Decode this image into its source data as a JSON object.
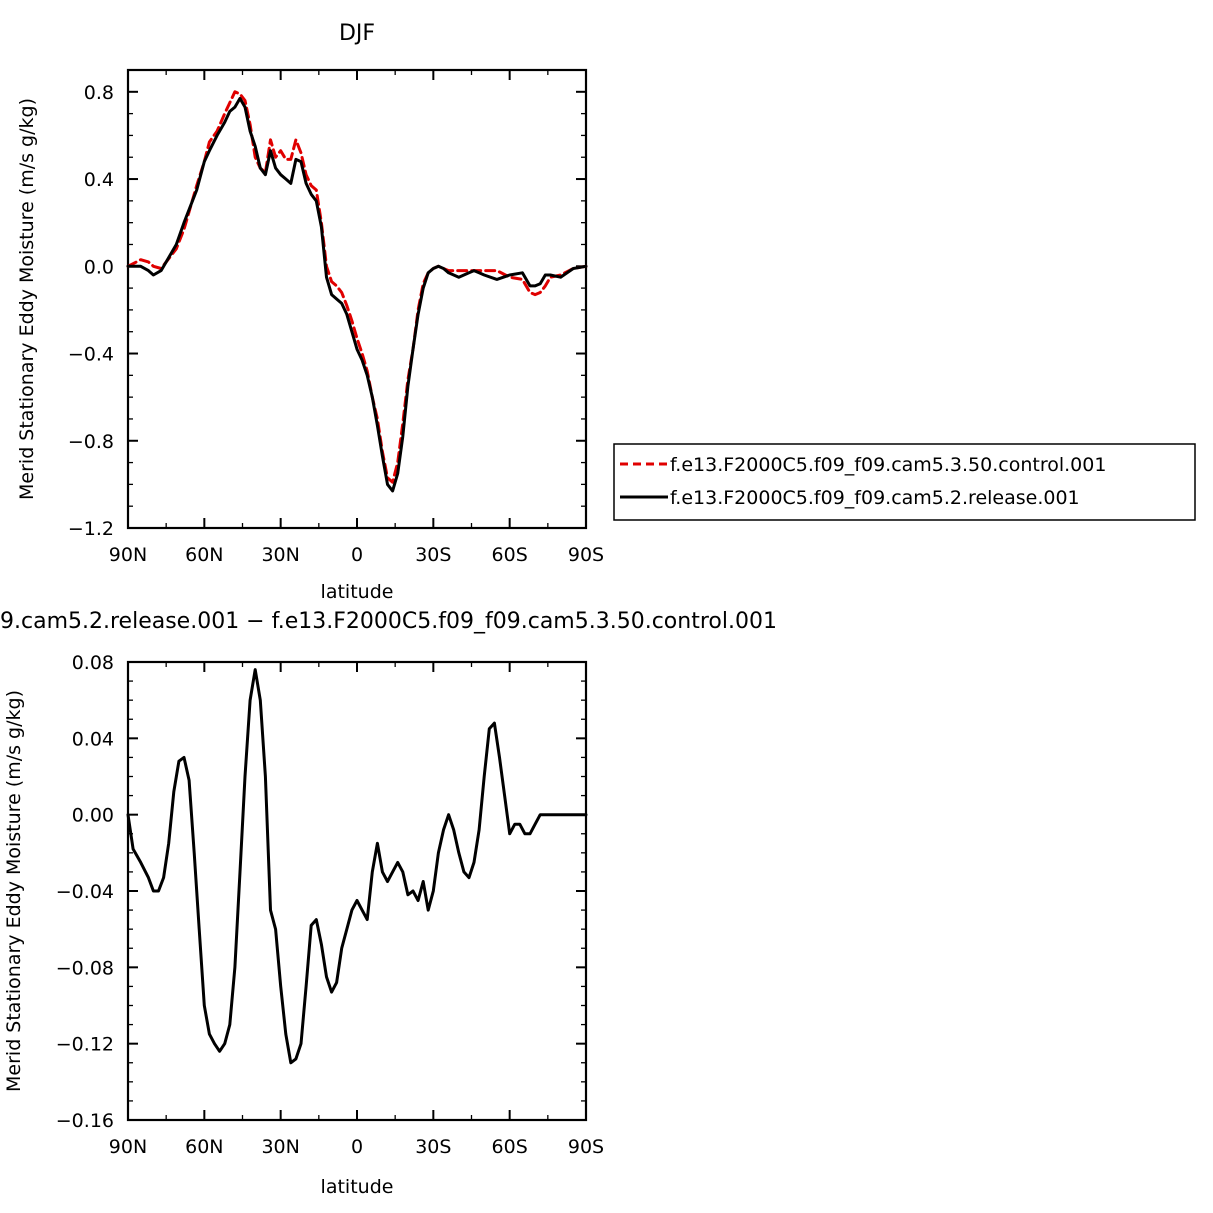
{
  "chart_data": [
    {
      "type": "line",
      "title": "DJF",
      "xlabel": "latitude",
      "ylabel": "Merid Stationary Eddy Moisture (m/s g/kg)",
      "xlim": [
        90,
        -90
      ],
      "ylim": [
        -1.2,
        0.9
      ],
      "x_ticks": [
        90,
        60,
        30,
        0,
        -30,
        -60,
        -90
      ],
      "x_tick_labels": [
        "90N",
        "60N",
        "30N",
        "0",
        "30S",
        "60S",
        "90S"
      ],
      "y_ticks": [
        0.8,
        0.4,
        0.0,
        -0.4,
        -0.8,
        -1.2
      ],
      "y_tick_labels": [
        "0.8",
        "0.4",
        "0.0",
        "−0.4",
        "−0.8",
        "−1.2"
      ],
      "legend": "outside-right",
      "grid": false,
      "series": [
        {
          "name": "f.e13.F2000C5.f09_f09.cam5.3.50.control.001",
          "color": "#e00000",
          "style": "dashed",
          "x": [
            90,
            85,
            82,
            80,
            77,
            75,
            71,
            68,
            63,
            60,
            58,
            55,
            52,
            50,
            48,
            46,
            44,
            42,
            40,
            38,
            36,
            34,
            32,
            30,
            28,
            26,
            24,
            22,
            20,
            18,
            16,
            14,
            12,
            10,
            8,
            6,
            4,
            2,
            0,
            -2,
            -4,
            -6,
            -8,
            -10,
            -12,
            -14,
            -16,
            -18,
            -20,
            -22,
            -24,
            -26,
            -28,
            -30,
            -32,
            -34,
            -36,
            -38,
            -40,
            -42,
            -44,
            -46,
            -48,
            -50,
            -55,
            -60,
            -65,
            -68,
            -70,
            -72,
            -74,
            -76,
            -80,
            -85,
            -90
          ],
          "y": [
            0.0,
            0.03,
            0.02,
            0.0,
            -0.01,
            0.02,
            0.08,
            0.17,
            0.37,
            0.48,
            0.57,
            0.62,
            0.7,
            0.75,
            0.8,
            0.79,
            0.76,
            0.65,
            0.5,
            0.45,
            0.43,
            0.58,
            0.5,
            0.53,
            0.49,
            0.49,
            0.58,
            0.52,
            0.42,
            0.37,
            0.35,
            0.2,
            0.0,
            -0.07,
            -0.09,
            -0.12,
            -0.18,
            -0.25,
            -0.33,
            -0.4,
            -0.48,
            -0.6,
            -0.7,
            -0.85,
            -0.97,
            -0.99,
            -0.9,
            -0.72,
            -0.52,
            -0.38,
            -0.2,
            -0.08,
            -0.03,
            -0.01,
            0.0,
            -0.01,
            -0.02,
            -0.02,
            -0.02,
            -0.02,
            -0.02,
            -0.02,
            -0.02,
            -0.02,
            -0.02,
            -0.05,
            -0.06,
            -0.12,
            -0.13,
            -0.12,
            -0.09,
            -0.05,
            -0.04,
            -0.01,
            0.0
          ]
        },
        {
          "name": "f.e13.F2000C5.f09_f09.cam5.2.release.001",
          "color": "#000000",
          "style": "solid",
          "x": [
            90,
            85,
            82,
            80,
            77,
            75,
            71,
            68,
            63,
            60,
            58,
            55,
            52,
            50,
            48,
            46,
            44,
            42,
            40,
            38,
            36,
            34,
            32,
            30,
            28,
            26,
            24,
            22,
            20,
            18,
            16,
            14,
            12,
            10,
            8,
            6,
            4,
            2,
            0,
            -2,
            -4,
            -6,
            -8,
            -10,
            -12,
            -14,
            -16,
            -18,
            -20,
            -22,
            -24,
            -26,
            -28,
            -30,
            -32,
            -34,
            -36,
            -38,
            -40,
            -42,
            -44,
            -46,
            -48,
            -50,
            -55,
            -60,
            -65,
            -68,
            -70,
            -72,
            -74,
            -76,
            -80,
            -85,
            -90
          ],
          "y": [
            0.0,
            0.0,
            -0.02,
            -0.04,
            -0.02,
            0.02,
            0.1,
            0.2,
            0.35,
            0.48,
            0.53,
            0.6,
            0.66,
            0.71,
            0.73,
            0.77,
            0.73,
            0.62,
            0.55,
            0.45,
            0.42,
            0.53,
            0.45,
            0.42,
            0.4,
            0.38,
            0.49,
            0.48,
            0.38,
            0.33,
            0.3,
            0.18,
            -0.05,
            -0.13,
            -0.15,
            -0.17,
            -0.22,
            -0.3,
            -0.38,
            -0.43,
            -0.5,
            -0.6,
            -0.73,
            -0.87,
            -1.0,
            -1.03,
            -0.95,
            -0.78,
            -0.55,
            -0.38,
            -0.22,
            -0.1,
            -0.03,
            -0.01,
            0.0,
            -0.01,
            -0.03,
            -0.04,
            -0.05,
            -0.04,
            -0.03,
            -0.02,
            -0.03,
            -0.04,
            -0.06,
            -0.04,
            -0.03,
            -0.09,
            -0.09,
            -0.08,
            -0.04,
            -0.04,
            -0.05,
            -0.01,
            0.0
          ]
        }
      ]
    },
    {
      "type": "line",
      "title": "9.cam5.2.release.001 − f.e13.F2000C5.f09_f09.cam5.3.50.control.001",
      "xlabel": "latitude",
      "ylabel": "Merid Stationary Eddy Moisture (m/s g/kg)",
      "xlim": [
        90,
        -90
      ],
      "ylim": [
        -0.16,
        0.08
      ],
      "x_ticks": [
        90,
        60,
        30,
        0,
        -30,
        -60,
        -90
      ],
      "x_tick_labels": [
        "90N",
        "60N",
        "30N",
        "0",
        "30S",
        "60S",
        "90S"
      ],
      "y_ticks": [
        0.08,
        0.04,
        0.0,
        -0.04,
        -0.08,
        -0.12,
        -0.16
      ],
      "y_tick_labels": [
        "0.08",
        "0.04",
        "0.00",
        "−0.04",
        "−0.08",
        "−0.12",
        "−0.16"
      ],
      "legend": "none",
      "grid": false,
      "series": [
        {
          "color": "#000000",
          "style": "solid",
          "x": [
            90,
            88,
            85,
            82,
            80,
            78,
            76,
            74,
            72,
            70,
            68,
            66,
            64,
            62,
            60,
            58,
            56,
            54,
            52,
            50,
            48,
            46,
            44,
            42,
            40,
            38,
            36,
            34,
            32,
            30,
            28,
            26,
            24,
            22,
            20,
            18,
            16,
            14,
            12,
            10,
            8,
            6,
            4,
            2,
            0,
            -2,
            -4,
            -6,
            -8,
            -10,
            -12,
            -14,
            -16,
            -18,
            -20,
            -22,
            -24,
            -26,
            -28,
            -30,
            -32,
            -34,
            -36,
            -38,
            -40,
            -42,
            -44,
            -46,
            -48,
            -50,
            -52,
            -54,
            -56,
            -58,
            -60,
            -62,
            -64,
            -66,
            -68,
            -70,
            -72,
            -74,
            -76,
            -78,
            -80,
            -82,
            -84,
            -86,
            -88,
            -90
          ],
          "y": [
            0.0,
            -0.018,
            -0.025,
            -0.033,
            -0.04,
            -0.04,
            -0.033,
            -0.015,
            0.012,
            0.028,
            0.03,
            0.018,
            -0.02,
            -0.06,
            -0.1,
            -0.115,
            -0.12,
            -0.124,
            -0.12,
            -0.11,
            -0.08,
            -0.03,
            0.02,
            0.06,
            0.076,
            0.06,
            0.02,
            -0.05,
            -0.06,
            -0.09,
            -0.115,
            -0.13,
            -0.128,
            -0.12,
            -0.09,
            -0.058,
            -0.055,
            -0.068,
            -0.085,
            -0.093,
            -0.088,
            -0.07,
            -0.06,
            -0.05,
            -0.045,
            -0.05,
            -0.055,
            -0.03,
            -0.015,
            -0.03,
            -0.035,
            -0.03,
            -0.025,
            -0.03,
            -0.042,
            -0.04,
            -0.045,
            -0.035,
            -0.05,
            -0.04,
            -0.02,
            -0.008,
            0.0,
            -0.008,
            -0.02,
            -0.03,
            -0.033,
            -0.025,
            -0.008,
            0.02,
            0.045,
            0.048,
            0.03,
            0.01,
            -0.01,
            -0.005,
            -0.005,
            -0.01,
            -0.01,
            -0.005,
            0.0,
            0.0,
            0.0,
            0.0,
            0.0,
            0.0,
            0.0,
            0.0,
            0.0,
            0.0
          ]
        }
      ]
    }
  ]
}
